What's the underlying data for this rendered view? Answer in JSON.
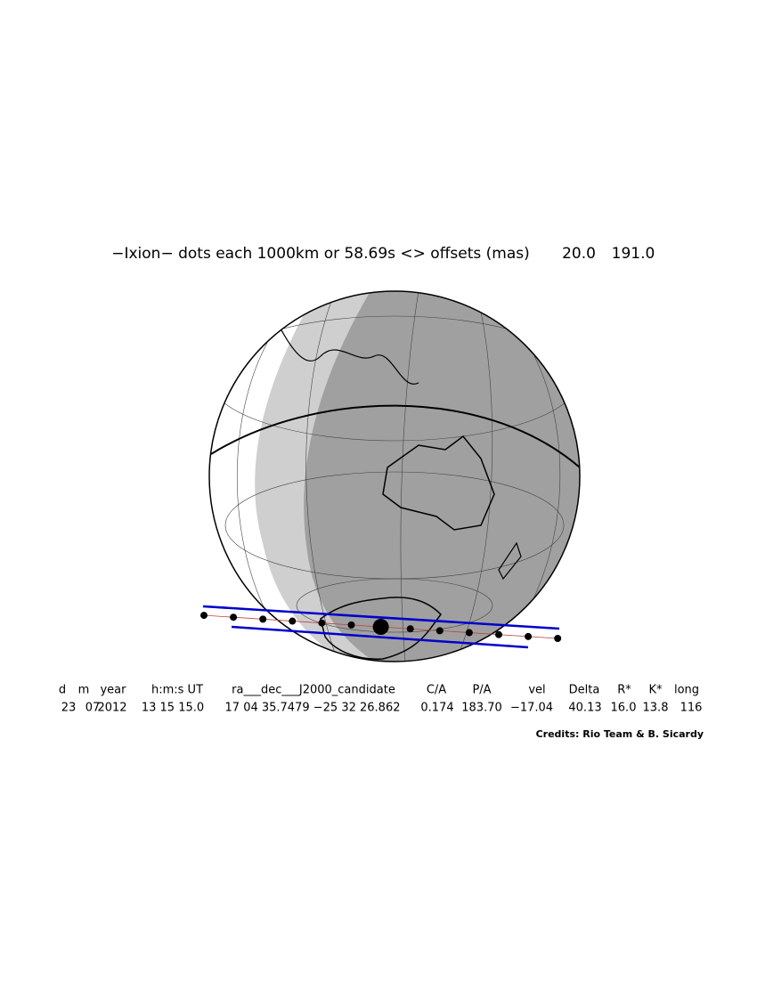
{
  "title": "−Ixion− dots each 1000km or 58.69s <> offsets (mas)",
  "offsets": [
    "20.0",
    "191.0"
  ],
  "table": {
    "headers": [
      "d",
      "m",
      "year",
      "h:m:s UT",
      "ra___dec___J2000_candidate",
      "C/A",
      "P/A",
      "vel",
      "Delta",
      "R*",
      "K*",
      "long"
    ],
    "values": [
      "23",
      "07",
      "2012",
      "13 15 15.0",
      "17 04 35.7479 −25 32 26.862",
      "0.174",
      "183.70",
      "−17.04",
      "40.13",
      "16.0",
      "13.8",
      "116"
    ]
  },
  "credits": "Credits: Rio Team & B. Sicardy"
}
